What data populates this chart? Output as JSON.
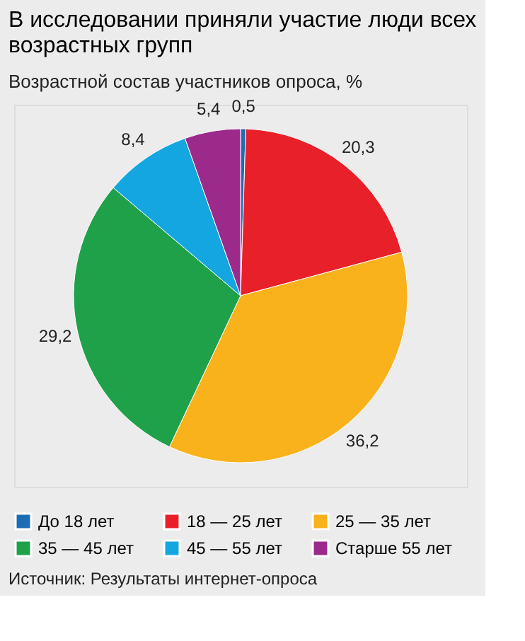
{
  "chart_data": {
    "type": "pie",
    "title": "В исследовании приняли участие люди всех возрастных групп",
    "subtitle": "Возрастной состав участников опроса, %",
    "categories": [
      "До 18 лет",
      "18 — 25 лет",
      "25 — 35 лет",
      "35 — 45 лет",
      "45 — 55 лет",
      "Старше 55 лет"
    ],
    "values": [
      0.5,
      20.3,
      36.2,
      29.2,
      8.4,
      5.4
    ],
    "colors": [
      "#1c6db5",
      "#e8202a",
      "#f9b21b",
      "#1fa14a",
      "#13a6e0",
      "#9b2a8a"
    ],
    "value_labels": [
      "0,5",
      "20,3",
      "36,2",
      "29,2",
      "8,4",
      "5,4"
    ],
    "legend": "bottom",
    "annotations": [
      "Источник: Результаты интернет-опроса"
    ]
  }
}
